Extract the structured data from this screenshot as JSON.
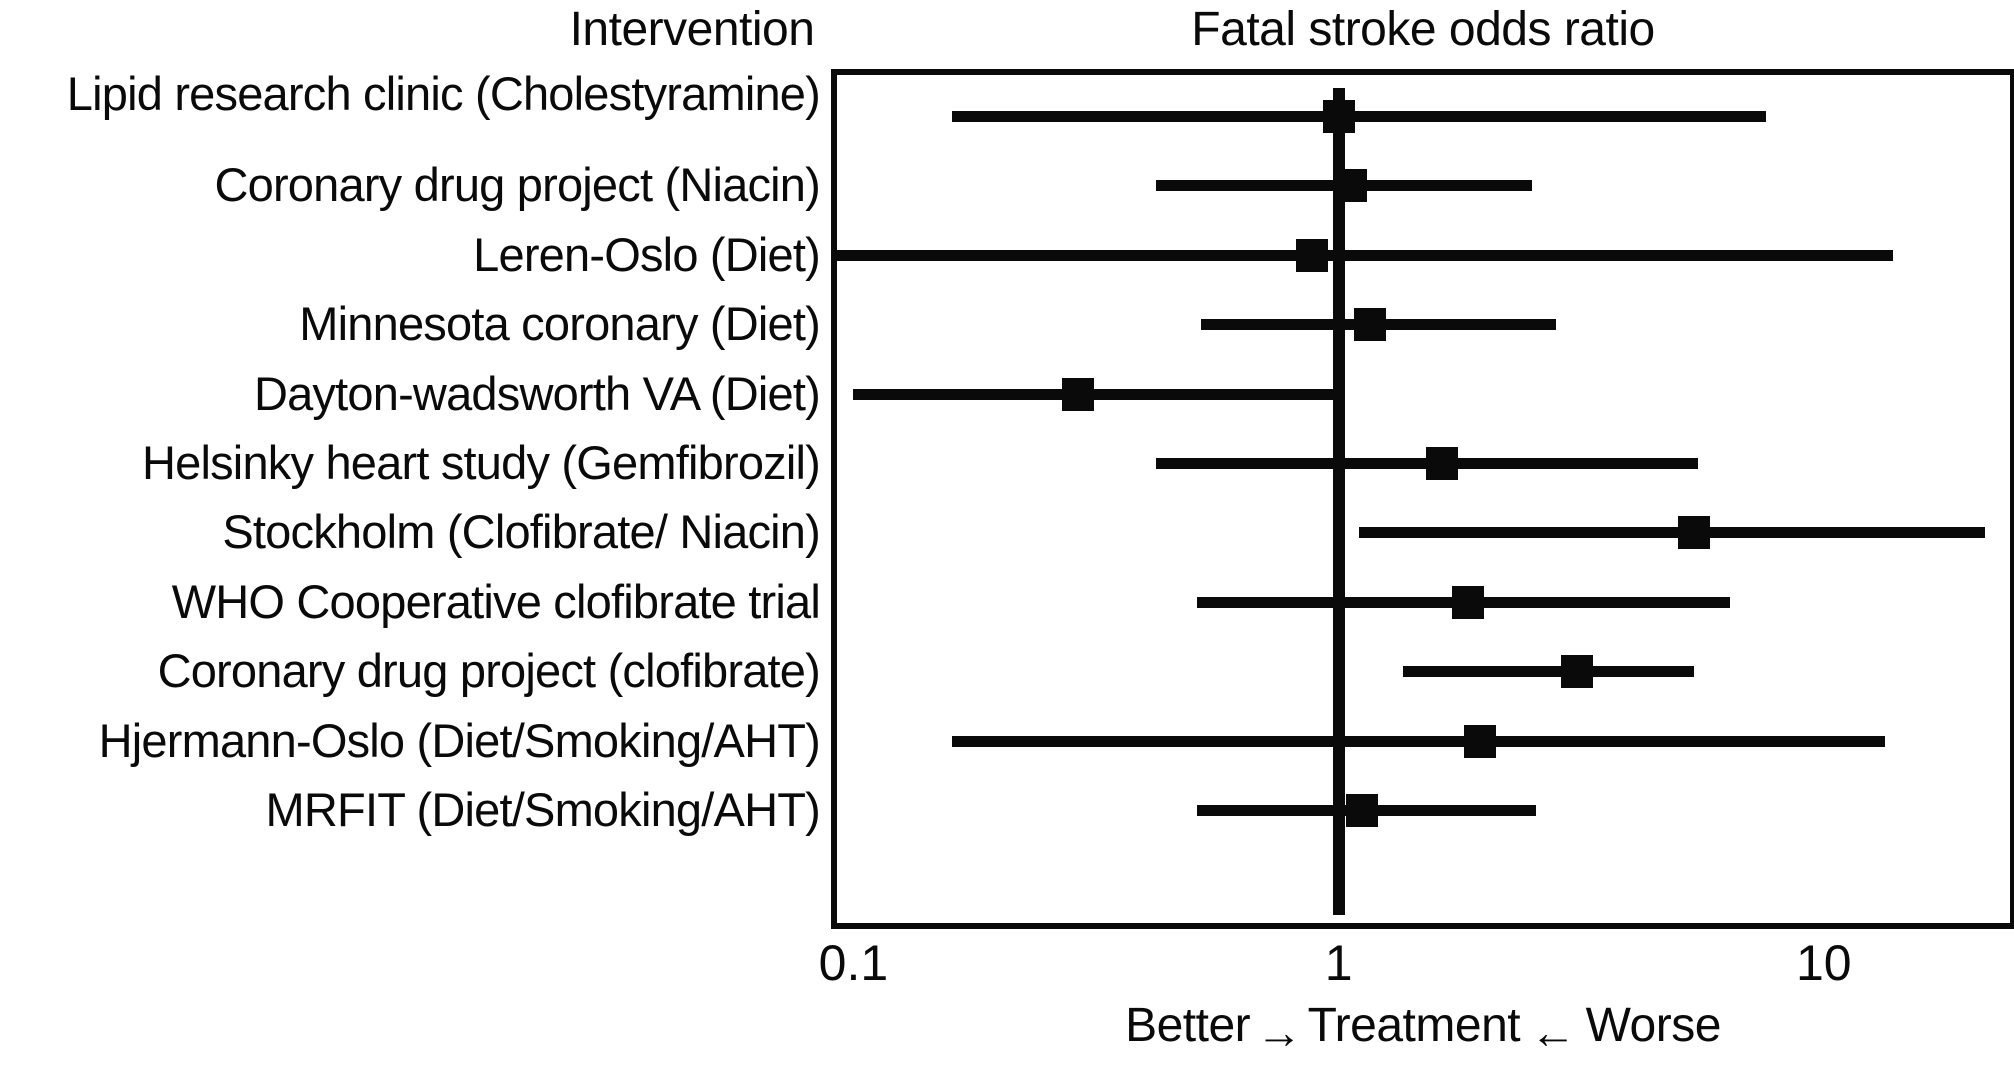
{
  "headers": {
    "intervention": "Intervention",
    "plot_title": "Fatal stroke odds ratio"
  },
  "axis": {
    "scale": "log10",
    "tick_labels": [
      "0.1",
      "1",
      "10"
    ],
    "tick_values": [
      0.1,
      1,
      10
    ],
    "reference_line": 1.0
  },
  "footer": {
    "better": "Better",
    "right_arrow": "→",
    "treatment": "Treatment",
    "left_arrow": "←",
    "worse": "Worse"
  },
  "chart_data": {
    "type": "scatter",
    "variant": "forest-plot",
    "title": "Fatal stroke odds ratio",
    "xlabel": "Better→ Treatment ← Worse",
    "x_scale": "log",
    "x_ticks": [
      0.1,
      1,
      10
    ],
    "x_range": [
      0.0925,
      24.2
    ],
    "reference_line": 1.0,
    "marker": "black-square",
    "studies": [
      {
        "label": "Lipid research clinic (Cholestyramine)",
        "or": 1.0,
        "ci_low": 0.16,
        "ci_high": 7.6
      },
      {
        "label": "Coronary drug project (Niacin)",
        "or": 1.06,
        "ci_low": 0.42,
        "ci_high": 2.5
      },
      {
        "label": "Leren-Oslo (Diet)",
        "or": 0.88,
        "ci_low": 0.09,
        "ci_high": 13.9
      },
      {
        "label": "Minnesota coronary (Diet)",
        "or": 1.16,
        "ci_low": 0.52,
        "ci_high": 2.8
      },
      {
        "label": "Dayton-wadsworth VA (Diet)",
        "or": 0.29,
        "ci_low": 0.1,
        "ci_high": 1.0
      },
      {
        "label": "Helsinky heart study (Gemfibrozil)",
        "or": 1.63,
        "ci_low": 0.42,
        "ci_high": 5.5
      },
      {
        "label": "Stockholm (Clofibrate/ Niacin)",
        "or": 5.4,
        "ci_low": 1.1,
        "ci_high": 21.5
      },
      {
        "label": "WHO Cooperative clofibrate trial",
        "or": 1.85,
        "ci_low": 0.51,
        "ci_high": 6.4
      },
      {
        "label": "Coronary drug project (clofibrate)",
        "or": 3.1,
        "ci_low": 1.36,
        "ci_high": 5.4
      },
      {
        "label": "Hjermann-Oslo (Diet/Smoking/AHT)",
        "or": 1.96,
        "ci_low": 0.16,
        "ci_high": 13.4
      },
      {
        "label": "MRFIT (Diet/Smoking/AHT)",
        "or": 1.12,
        "ci_low": 0.51,
        "ci_high": 2.55
      }
    ],
    "colors": {
      "ink": "#0a0a0a",
      "background": "#ffffff"
    }
  }
}
